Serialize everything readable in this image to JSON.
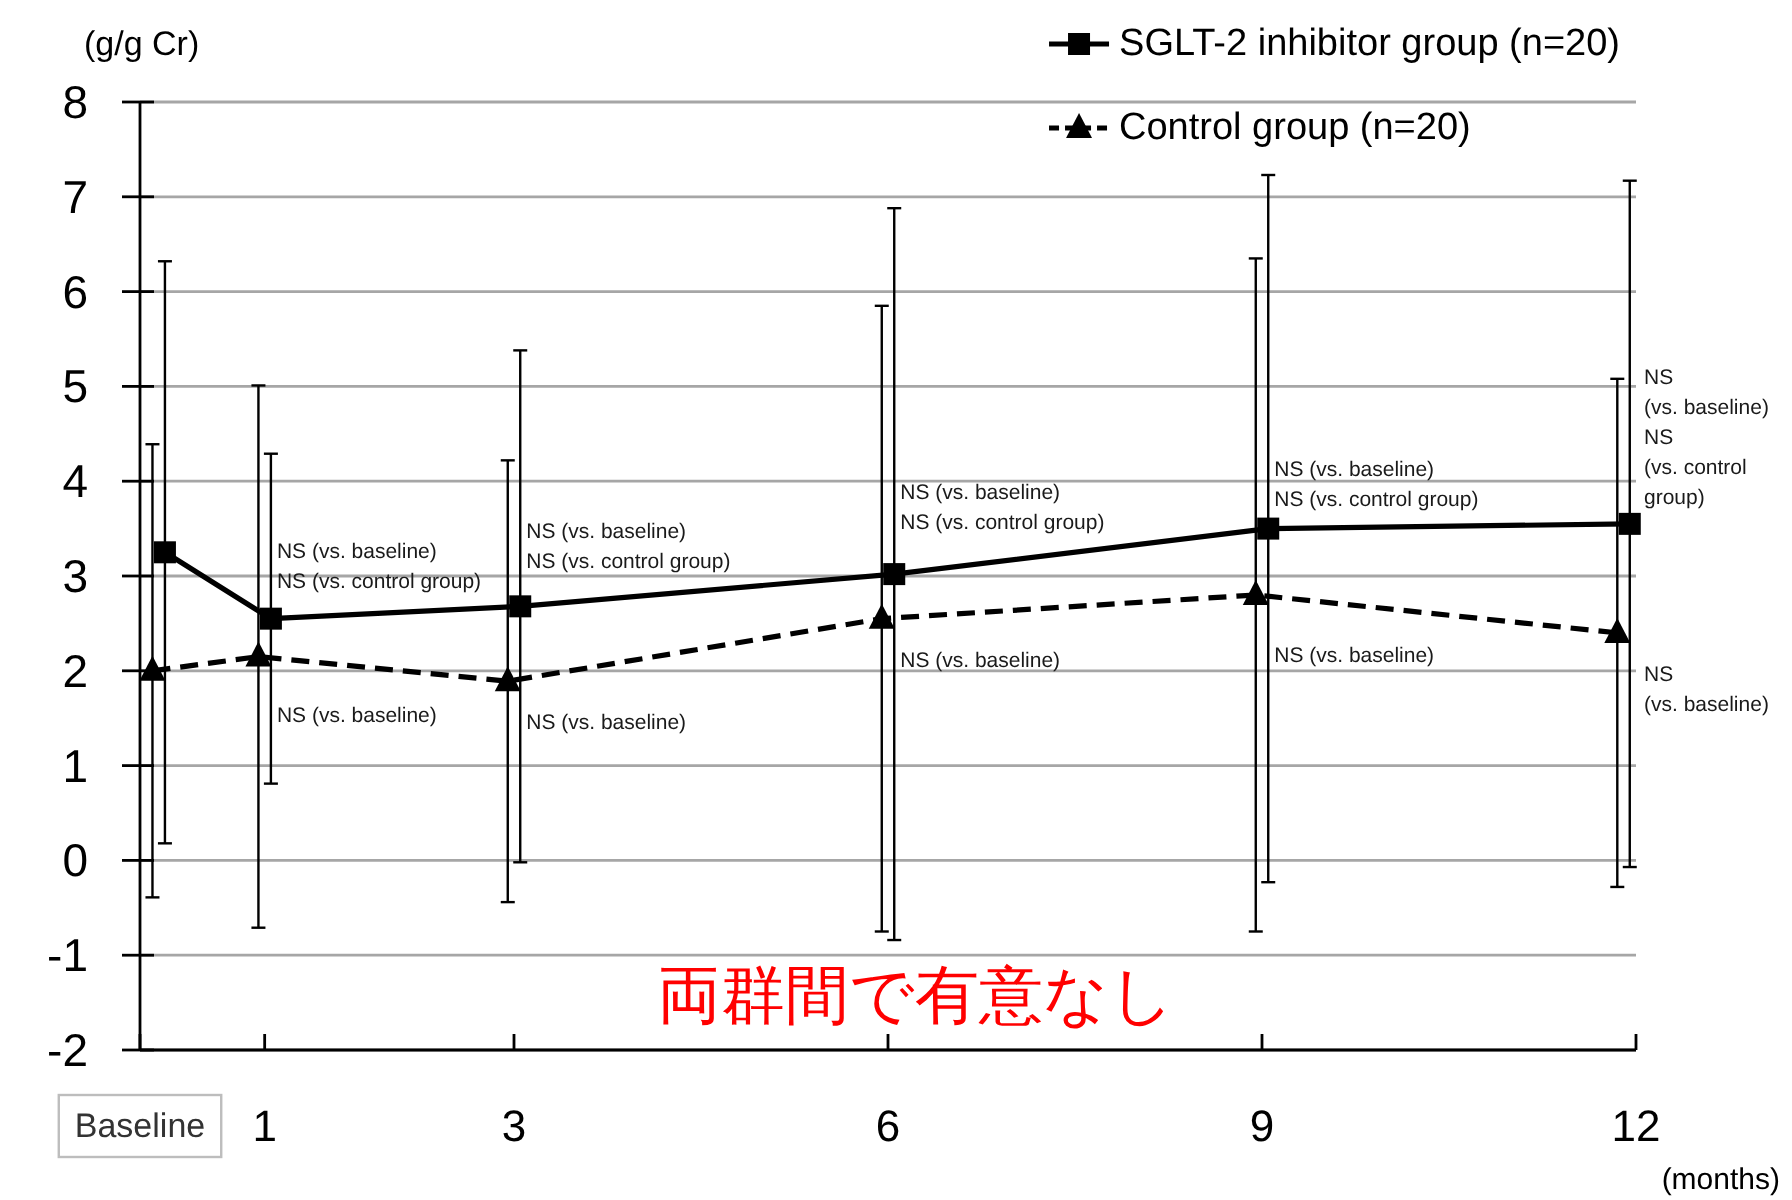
{
  "chart_data": {
    "type": "line",
    "ylabel": "(g/g Cr)",
    "xlabel": "(months)",
    "xlim": [
      0,
      12
    ],
    "xticks": [
      {
        "value": 0,
        "label": "Baseline"
      },
      1,
      3,
      6,
      9,
      12
    ],
    "ylim": [
      -2,
      8
    ],
    "yticks": [
      -2,
      -1,
      0,
      1,
      2,
      3,
      4,
      5,
      6,
      7,
      8
    ],
    "grid": "y",
    "legend": "top right",
    "series": [
      {
        "name": "SGLT-2 inhibitor group (n=20)",
        "color": "#000000",
        "marker": "square",
        "line_style": "solid",
        "x": [
          0.2,
          1.05,
          3.05,
          6.05,
          9.05,
          11.95
        ],
        "values": [
          3.25,
          2.55,
          2.68,
          3.02,
          3.5,
          3.55
        ],
        "errors": [
          3.07,
          1.74,
          2.7,
          3.86,
          3.73,
          3.62
        ]
      },
      {
        "name": "Control group (n=20)",
        "color": "#000000",
        "marker": "triangle",
        "line_style": "dashed",
        "x": [
          0.1,
          0.95,
          2.95,
          5.95,
          8.95,
          11.85
        ],
        "values": [
          2.0,
          2.15,
          1.89,
          2.55,
          2.8,
          2.4
        ],
        "errors": [
          2.39,
          2.86,
          2.33,
          3.3,
          3.55,
          2.68
        ]
      }
    ],
    "annotations": [
      {
        "text": "NS (vs. baseline)\nNS (vs. control group)",
        "x": 1.05,
        "y": 2.55
      },
      {
        "text": "NS (vs. baseline)",
        "x": 0.95,
        "y": 2.15
      },
      {
        "text": "NS (vs. baseline)\nNS (vs. control group)",
        "x": 3.05,
        "y": 2.68
      },
      {
        "text": "NS (vs. baseline)",
        "x": 2.95,
        "y": 1.89
      },
      {
        "text": "NS (vs. baseline)\nNS (vs. control group)",
        "x": 6.05,
        "y": 3.02
      },
      {
        "text": "NS (vs. baseline)",
        "x": 5.95,
        "y": 2.55
      },
      {
        "text": "NS (vs. baseline)\nNS (vs. control group)",
        "x": 9.05,
        "y": 3.5
      },
      {
        "text": "NS (vs. baseline)",
        "x": 8.95,
        "y": 2.8
      },
      {
        "text": "NS\n(vs. baseline)\nNS\n(vs. control\ngroup)",
        "x": 11.95,
        "y": 3.55
      },
      {
        "text": "NS\n(vs. baseline)",
        "x": 11.85,
        "y": 2.4
      },
      "両群間で有意なし"
    ]
  }
}
